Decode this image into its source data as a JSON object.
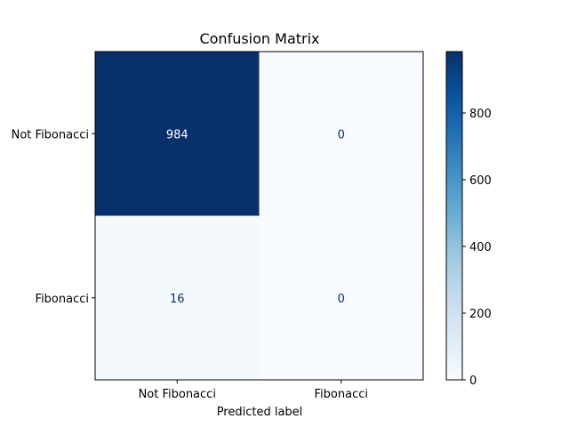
{
  "chart_data": {
    "type": "heatmap",
    "title": "Confusion Matrix",
    "xlabel": "Predicted label",
    "ylabel": "",
    "x_categories": [
      "Not Fibonacci",
      "Fibonacci"
    ],
    "y_categories": [
      "Not Fibonacci",
      "Fibonacci"
    ],
    "values": [
      [
        984,
        0
      ],
      [
        16,
        0
      ]
    ],
    "colormap": "Blues",
    "colorbar": {
      "range": [
        0,
        984
      ],
      "ticks": [
        0,
        200,
        400,
        600,
        800
      ],
      "tick_labels": [
        "0",
        "200",
        "400",
        "600",
        "800"
      ]
    },
    "colors": {
      "low": "#f7fbff",
      "high": "#08306b",
      "text_dark_cell": "#ffffff",
      "text_light_cell": "#08306b"
    },
    "grid": false
  }
}
